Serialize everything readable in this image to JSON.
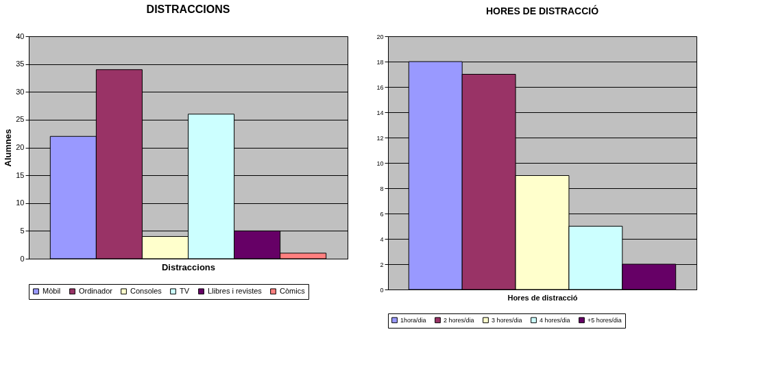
{
  "chart_data": [
    {
      "type": "bar",
      "title": "DISTRACCIONS",
      "xlabel": "Distraccions",
      "ylabel": "Alumnes",
      "categories": [
        null
      ],
      "ylim": [
        0,
        40
      ],
      "yticks": [
        0,
        5,
        10,
        15,
        20,
        25,
        30,
        35,
        40
      ],
      "grid": "y",
      "legend": "bottom",
      "series": [
        {
          "name": "Mòbil",
          "color": "#9999ff",
          "values": [
            22
          ]
        },
        {
          "name": "Ordinador",
          "color": "#993366",
          "values": [
            34
          ]
        },
        {
          "name": "Consoles",
          "color": "#ffffcc",
          "values": [
            4
          ]
        },
        {
          "name": "TV",
          "color": "#ccffff",
          "values": [
            26
          ]
        },
        {
          "name": "Llibres i revistes",
          "color": "#660066",
          "values": [
            5
          ]
        },
        {
          "name": "Còmics",
          "color": "#ff8080",
          "values": [
            1
          ]
        }
      ]
    },
    {
      "type": "bar",
      "title": "HORES DE DISTRACCIÓ",
      "xlabel": "Hores de distracció",
      "categories": [
        null
      ],
      "ylim": [
        0,
        20
      ],
      "yticks": [
        0,
        2,
        4,
        6,
        8,
        10,
        12,
        14,
        16,
        18,
        20
      ],
      "grid": "y",
      "legend": "bottom",
      "series": [
        {
          "name": "1hora/dia",
          "color": "#9999ff",
          "values": [
            18
          ]
        },
        {
          "name": "2 hores/dia",
          "color": "#993366",
          "values": [
            17
          ]
        },
        {
          "name": "3 hores/dia",
          "color": "#ffffcc",
          "values": [
            9
          ]
        },
        {
          "name": "4 hores/dia",
          "color": "#ccffff",
          "values": [
            5
          ]
        },
        {
          "name": "+5 hores/dia",
          "color": "#660066",
          "values": [
            2
          ]
        }
      ]
    }
  ]
}
